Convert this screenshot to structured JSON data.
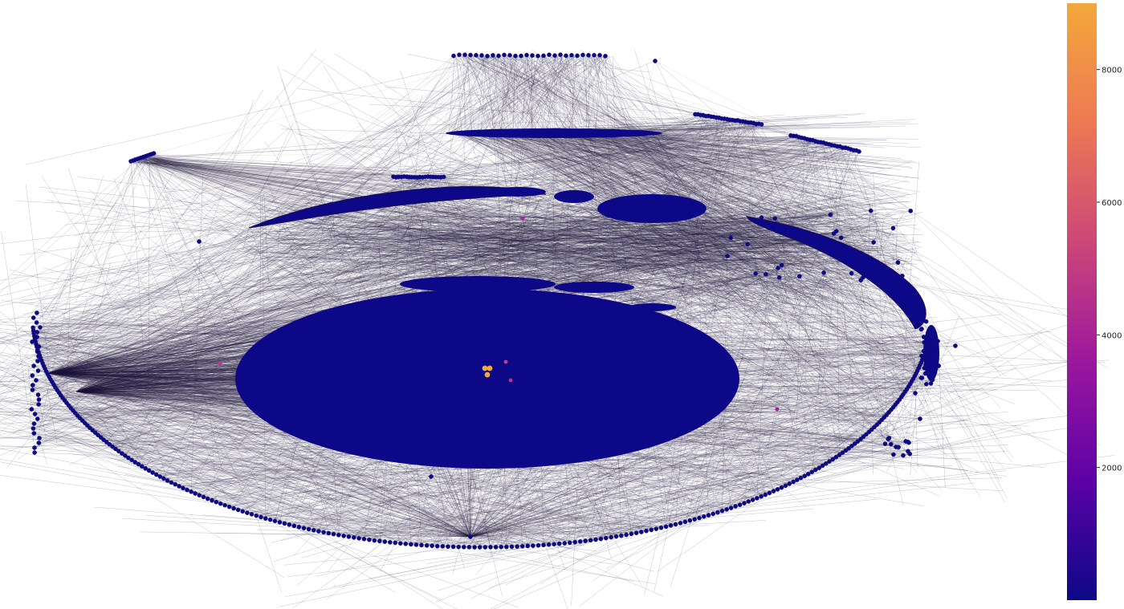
{
  "colors": {
    "node_low": "#0d0887",
    "node_high": "#f3a83b",
    "edge": "#1c1338",
    "outline": "#111111"
  },
  "colorbar": {
    "colormap": "plasma (truncated at orange)",
    "min": 0,
    "max": 9000,
    "stops": [
      "#0d0887",
      "#5c01a6",
      "#9c179e",
      "#cc4778",
      "#ed7953",
      "#f3a83b"
    ],
    "ticks": [
      {
        "value": 2000,
        "label": "2000"
      },
      {
        "value": 4000,
        "label": "4000"
      },
      {
        "value": 6000,
        "label": "6000"
      },
      {
        "value": 8000,
        "label": "8000"
      }
    ]
  },
  "graph": {
    "layout": "shell-like concentric arcs",
    "node_color_by": "degree",
    "highlighted_nodes": [
      {
        "group": "center",
        "value": 8500,
        "color": "#f3a83b"
      },
      {
        "group": "center",
        "value": 8300,
        "color": "#f3a83b"
      },
      {
        "group": "center",
        "value": 8100,
        "color": "#f3a83b"
      },
      {
        "group": "center",
        "value": 3800,
        "color": "#c13f8b"
      },
      {
        "group": "center",
        "value": 3400,
        "color": "#b5338e"
      },
      {
        "group": "left",
        "value": 3600,
        "color": "#b83590"
      },
      {
        "group": "upper",
        "value": 3200,
        "color": "#a4259c"
      },
      {
        "group": "right",
        "value": 3000,
        "color": "#9a1fa0"
      }
    ]
  }
}
